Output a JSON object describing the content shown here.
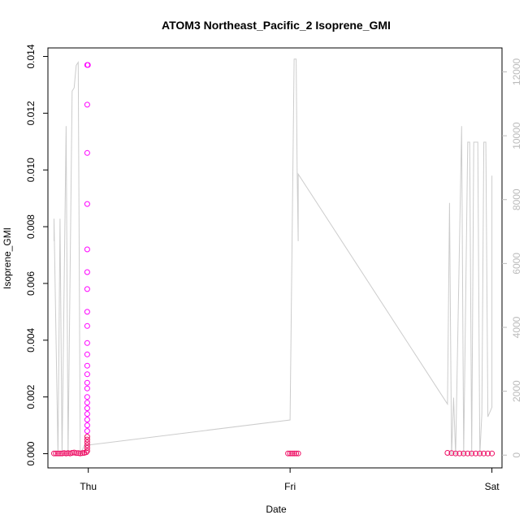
{
  "chart_data": {
    "type": "scatter",
    "title": "ATOM3 Northeast_Pacific_2 Isoprene_GMI",
    "xlabel": "Date",
    "ylabel": "Isoprene_GMI",
    "x_ticks": [
      "Thu",
      "Fri",
      "Sat"
    ],
    "ylim": [
      0,
      0.014
    ],
    "y_ticks": [
      "0.000",
      "0.002",
      "0.004",
      "0.006",
      "0.008",
      "0.010",
      "0.012",
      "0.014"
    ],
    "y2lim": [
      0,
      12000
    ],
    "y2_ticks": [
      "0",
      "2000",
      "4000",
      "6000",
      "8000",
      "10000",
      "12000"
    ],
    "x_unit": "days since Thu 00:00",
    "colors": {
      "points_high": "#ff00ff",
      "points_low": "#ee1166",
      "altitude_line": "#cccccc",
      "axes": "#000000",
      "right_axis": "#bbbbbb"
    },
    "series": [
      {
        "role": "left-axis points",
        "points": [
          [
            -0.17,
            1e-05
          ],
          [
            -0.16,
            1e-05
          ],
          [
            -0.15,
            1e-05
          ],
          [
            -0.14,
            1e-05
          ],
          [
            -0.13,
            1e-05
          ],
          [
            -0.12,
            2e-05
          ],
          [
            -0.11,
            1e-05
          ],
          [
            -0.1,
            2e-05
          ],
          [
            -0.09,
            1e-05
          ],
          [
            -0.08,
            3e-05
          ],
          [
            -0.07,
            4e-05
          ],
          [
            -0.06,
            2e-05
          ],
          [
            -0.05,
            2e-05
          ],
          [
            -0.04,
            1e-05
          ],
          [
            -0.03,
            2e-05
          ],
          [
            -0.02,
            3e-05
          ],
          [
            -0.01,
            5e-05
          ],
          [
            -0.005,
            0.0001
          ],
          [
            -0.005,
            0.0002
          ],
          [
            -0.005,
            0.0003
          ],
          [
            -0.005,
            0.0004
          ],
          [
            -0.005,
            0.0005
          ],
          [
            -0.005,
            0.0006
          ],
          [
            -0.005,
            0.0008
          ],
          [
            -0.005,
            0.001
          ],
          [
            -0.005,
            0.0012
          ],
          [
            -0.005,
            0.0014
          ],
          [
            -0.005,
            0.0016
          ],
          [
            -0.005,
            0.0018
          ],
          [
            -0.005,
            0.002
          ],
          [
            -0.005,
            0.0023
          ],
          [
            -0.005,
            0.0025
          ],
          [
            -0.005,
            0.0028
          ],
          [
            -0.005,
            0.0031
          ],
          [
            -0.005,
            0.0035
          ],
          [
            -0.005,
            0.0039
          ],
          [
            -0.005,
            0.0045
          ],
          [
            -0.005,
            0.005
          ],
          [
            -0.005,
            0.0058
          ],
          [
            -0.005,
            0.0064
          ],
          [
            -0.005,
            0.0072
          ],
          [
            -0.005,
            0.0088
          ],
          [
            -0.005,
            0.0106
          ],
          [
            -0.005,
            0.0123
          ],
          [
            -0.005,
            0.0137
          ],
          [
            -0.002,
            0.0137
          ],
          [
            0.99,
            1e-05
          ],
          [
            1.0,
            1e-05
          ],
          [
            1.01,
            1e-05
          ],
          [
            1.02,
            1e-05
          ],
          [
            1.03,
            1e-05
          ],
          [
            1.04,
            1e-05
          ],
          [
            1.78,
            3e-05
          ],
          [
            1.8,
            2e-05
          ],
          [
            1.82,
            1e-05
          ],
          [
            1.84,
            1e-05
          ],
          [
            1.86,
            1e-05
          ],
          [
            1.88,
            1e-05
          ],
          [
            1.9,
            1e-05
          ],
          [
            1.92,
            1e-05
          ],
          [
            1.94,
            1e-05
          ],
          [
            1.96,
            1e-05
          ],
          [
            1.98,
            1e-05
          ],
          [
            2.0,
            1e-05
          ]
        ]
      },
      {
        "role": "right-axis line",
        "points": [
          [
            -0.17,
            6700
          ],
          [
            -0.17,
            7400
          ],
          [
            -0.15,
            0
          ],
          [
            -0.14,
            7400
          ],
          [
            -0.13,
            0
          ],
          [
            -0.11,
            10300
          ],
          [
            -0.1,
            0
          ],
          [
            -0.08,
            11400
          ],
          [
            -0.07,
            11500
          ],
          [
            -0.06,
            12200
          ],
          [
            -0.05,
            12300
          ],
          [
            -0.04,
            0
          ],
          [
            -0.02,
            300
          ],
          [
            1.0,
            1100
          ],
          [
            1.02,
            12400
          ],
          [
            1.03,
            12400
          ],
          [
            1.035,
            8900
          ],
          [
            1.04,
            6700
          ],
          [
            1.04,
            8800
          ],
          [
            1.78,
            1600
          ],
          [
            1.79,
            7900
          ],
          [
            1.8,
            0
          ],
          [
            1.81,
            1800
          ],
          [
            1.82,
            0
          ],
          [
            1.85,
            10300
          ],
          [
            1.86,
            0
          ],
          [
            1.88,
            9800
          ],
          [
            1.89,
            9800
          ],
          [
            1.9,
            0
          ],
          [
            1.91,
            9800
          ],
          [
            1.93,
            9800
          ],
          [
            1.94,
            0
          ],
          [
            1.95,
            1300
          ],
          [
            1.96,
            9800
          ],
          [
            1.97,
            9800
          ],
          [
            1.98,
            1200
          ],
          [
            2.0,
            1500
          ],
          [
            2.0,
            8750
          ]
        ]
      }
    ]
  }
}
